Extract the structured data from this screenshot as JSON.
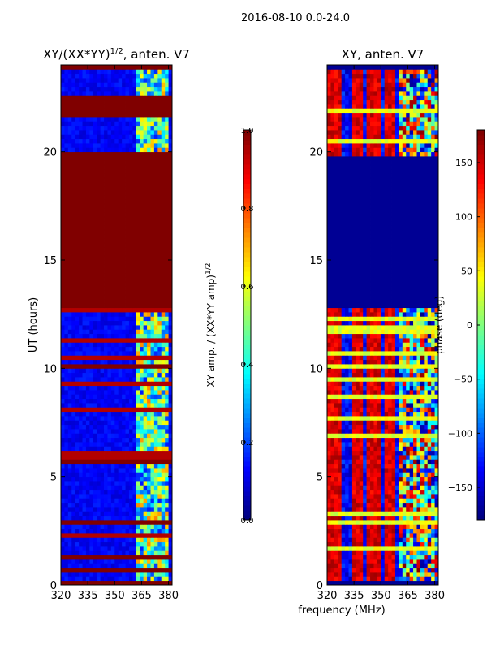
{
  "figure_title": "2016-08-10 0.0-24.0",
  "colors": {
    "dark_red": "#800000",
    "dark_blue": "#00007f",
    "axis": "#000000",
    "background": "#ffffff"
  },
  "chart_data": [
    {
      "type": "heatmap",
      "id": "amp",
      "title_main": "XY/(XX*YY)",
      "title_sup": "1/2",
      "title_tail": ", anten. V7",
      "xlabel": "",
      "ylabel": "UT (hours)",
      "xlim": [
        320,
        382
      ],
      "ylim": [
        0,
        24
      ],
      "xticks": [
        320,
        335,
        350,
        365,
        380
      ],
      "yticks": [
        0,
        5,
        10,
        15,
        20
      ],
      "colorbar": {
        "label_main": "XY amp. / (XX*YY amp)",
        "label_sup": "1/2",
        "range": [
          0.0,
          1.0
        ],
        "ticks": [
          "0.0",
          "0.2",
          "0.4",
          "0.6",
          "0.8",
          "1.0"
        ],
        "tick_values": [
          0.0,
          0.2,
          0.4,
          0.6,
          0.8,
          1.0
        ]
      },
      "saturated_bands_hours": [
        [
          0,
          0.3
        ],
        [
          0.6,
          0.75
        ],
        [
          1.3,
          1.5
        ],
        [
          2.85,
          3.0
        ],
        [
          5.7,
          5.9
        ],
        [
          9.95,
          10.15
        ],
        [
          12.8,
          20.0
        ],
        [
          21.65,
          22.7
        ],
        [
          23.85,
          24.0
        ]
      ],
      "bright_region_x": [
        363,
        380
      ]
    },
    {
      "type": "heatmap",
      "id": "phase",
      "title": "XY, anten. V7",
      "xlabel": "frequency (MHz)",
      "ylabel": "",
      "xlim": [
        320,
        382
      ],
      "ylim": [
        0,
        24
      ],
      "xticks": [
        320,
        335,
        350,
        365,
        380
      ],
      "yticks": [
        0,
        5,
        10,
        15,
        20
      ],
      "colorbar": {
        "label_main": "phase (deg)",
        "range": [
          -180,
          180
        ],
        "ticks": [
          "150",
          "100",
          "50",
          "0",
          "−50",
          "−100",
          "−150"
        ],
        "tick_values": [
          150,
          100,
          50,
          0,
          -50,
          -100,
          -150
        ]
      },
      "empty_bands_hours": [
        [
          0,
          0.3
        ],
        [
          12.8,
          19.9
        ],
        [
          23.85,
          24.0
        ]
      ],
      "high_phase_columns_mhz": [
        [
          321,
          328
        ],
        [
          334,
          340
        ],
        [
          343,
          349
        ],
        [
          353,
          357
        ]
      ]
    }
  ]
}
